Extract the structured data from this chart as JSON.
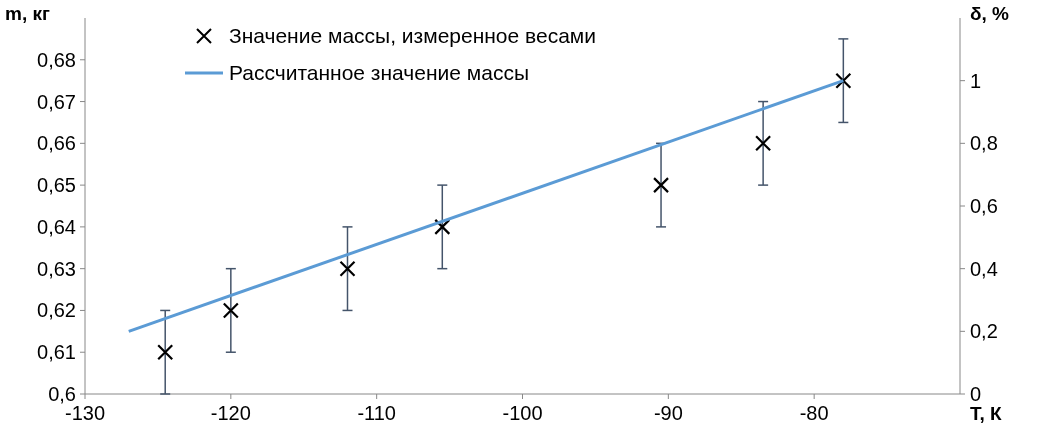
{
  "chart_data": {
    "type": "scatter",
    "xlabel": "T, К",
    "ylabel": "m, кг",
    "y2label": "δ, %",
    "xlim": [
      -130,
      -70
    ],
    "xticks": [
      -130,
      -120,
      -110,
      -100,
      -90,
      -80
    ],
    "ylim": [
      0.6,
      0.69
    ],
    "yticks": [
      {
        "value": 0.6,
        "label": "0,6"
      },
      {
        "value": 0.61,
        "label": "0,61"
      },
      {
        "value": 0.62,
        "label": "0,62"
      },
      {
        "value": 0.63,
        "label": "0,63"
      },
      {
        "value": 0.64,
        "label": "0,64"
      },
      {
        "value": 0.65,
        "label": "0,65"
      },
      {
        "value": 0.66,
        "label": "0,66"
      },
      {
        "value": 0.67,
        "label": "0,67"
      },
      {
        "value": 0.68,
        "label": "0,68"
      }
    ],
    "y2lim": [
      0,
      1.2
    ],
    "y2ticks": [
      0,
      {
        "value": 0.2,
        "label": "0,2"
      },
      {
        "value": 0.4,
        "label": "0,4"
      },
      {
        "value": 0.6,
        "label": "0,6"
      },
      {
        "value": 0.8,
        "label": "0,8"
      },
      1
    ],
    "grid": false,
    "legend": "top left",
    "series": [
      {
        "name": "Значение массы, измеренное весами",
        "type": "scatter",
        "marker": "cross",
        "color": "#000000",
        "x": [
          -124.5,
          -120,
          -112,
          -105.5,
          -90.5,
          -83.5,
          -78
        ],
        "values": [
          0.61,
          0.62,
          0.63,
          0.64,
          0.65,
          0.66,
          0.675
        ],
        "errors": [
          0.01,
          0.01,
          0.01,
          0.01,
          0.01,
          0.01,
          0.01
        ]
      },
      {
        "name": "Рассчитанное значение массы",
        "type": "line",
        "marker": "none",
        "line_style": "solid",
        "color": "#5b9bd5",
        "x": [
          -127,
          -78
        ],
        "values": [
          0.615,
          0.675
        ]
      }
    ]
  }
}
